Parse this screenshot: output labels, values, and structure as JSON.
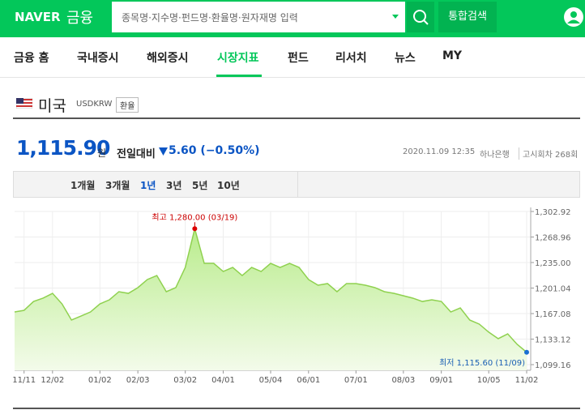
{
  "header": {
    "logo": "NAVER",
    "service": "금융",
    "search_placeholder": "종목명·지수명·펀드명·환율명·원자재명 입력",
    "search_button": "통합검색"
  },
  "nav": {
    "items": [
      "금융 홈",
      "국내증시",
      "해외증시",
      "시장지표",
      "펀드",
      "리서치",
      "뉴스",
      "MY"
    ],
    "active": 3
  },
  "currency": {
    "name": "미국",
    "code": "USDKRW",
    "tag": "환율"
  },
  "quote": {
    "price": "1,115.90",
    "unit": "원",
    "change_label": "전일대비",
    "change": "5.60 (−0.50%)",
    "datetime": "2020.11.09 12:35",
    "bank": "하나은행",
    "round": "고시회차 268회"
  },
  "period_tabs": {
    "items": [
      "1개월",
      "3개월",
      "1년",
      "3년",
      "5년",
      "10년"
    ],
    "active": 2
  },
  "chart_data": {
    "type": "line",
    "color": "#8fd14f",
    "max_label": "최고 1,280.00 (03/19)",
    "min_label": "최저 1,115.60 (11/09)",
    "values": [
      1169.2,
      1171.4,
      1183.2,
      1187.6,
      1194,
      1180,
      1158.5,
      1163.8,
      1169.2,
      1180,
      1185.4,
      1196.2,
      1194,
      1201.6,
      1212.4,
      1217.7,
      1196.2,
      1201.6,
      1228.5,
      1280,
      1233.9,
      1233.9,
      1223.1,
      1228.5,
      1217.7,
      1228.5,
      1223.1,
      1233.9,
      1228.5,
      1233.9,
      1228.5,
      1212.4,
      1204.8,
      1207,
      1196.2,
      1207,
      1207,
      1204.8,
      1201.6,
      1196.2,
      1194,
      1190.8,
      1187.6,
      1183.2,
      1185.4,
      1183.2,
      1169.2,
      1174.6,
      1158.5,
      1153.1,
      1142.4,
      1133.7,
      1140.1,
      1126.1,
      1115.6
    ],
    "xlim": [
      0,
      54
    ],
    "xticks": [
      {
        "value": 1,
        "label": "11/11"
      },
      {
        "value": 4,
        "label": "12/02"
      },
      {
        "value": 9,
        "label": "01/02"
      },
      {
        "value": 13,
        "label": "02/03"
      },
      {
        "value": 18,
        "label": "03/02"
      },
      {
        "value": 22,
        "label": "04/01"
      },
      {
        "value": 27,
        "label": "05/04"
      },
      {
        "value": 31,
        "label": "06/01"
      },
      {
        "value": 36,
        "label": "07/01"
      },
      {
        "value": 41,
        "label": "08/03"
      },
      {
        "value": 45,
        "label": "09/01"
      },
      {
        "value": 50,
        "label": "10/05"
      },
      {
        "value": 54,
        "label": "11/02"
      }
    ],
    "ylim": [
      1099.16,
      1302.92
    ],
    "yticks": [
      {
        "value": 1099.16,
        "label": "1,099.16"
      },
      {
        "value": 1133.12,
        "label": "1,133.12"
      },
      {
        "value": 1167.08,
        "label": "1,167.08"
      },
      {
        "value": 1201.04,
        "label": "1,201.04"
      },
      {
        "value": 1235,
        "label": "1,235.00"
      },
      {
        "value": 1268.96,
        "label": "1,268.96"
      },
      {
        "value": 1302.92,
        "label": "1,302.92"
      }
    ],
    "grid": true
  }
}
